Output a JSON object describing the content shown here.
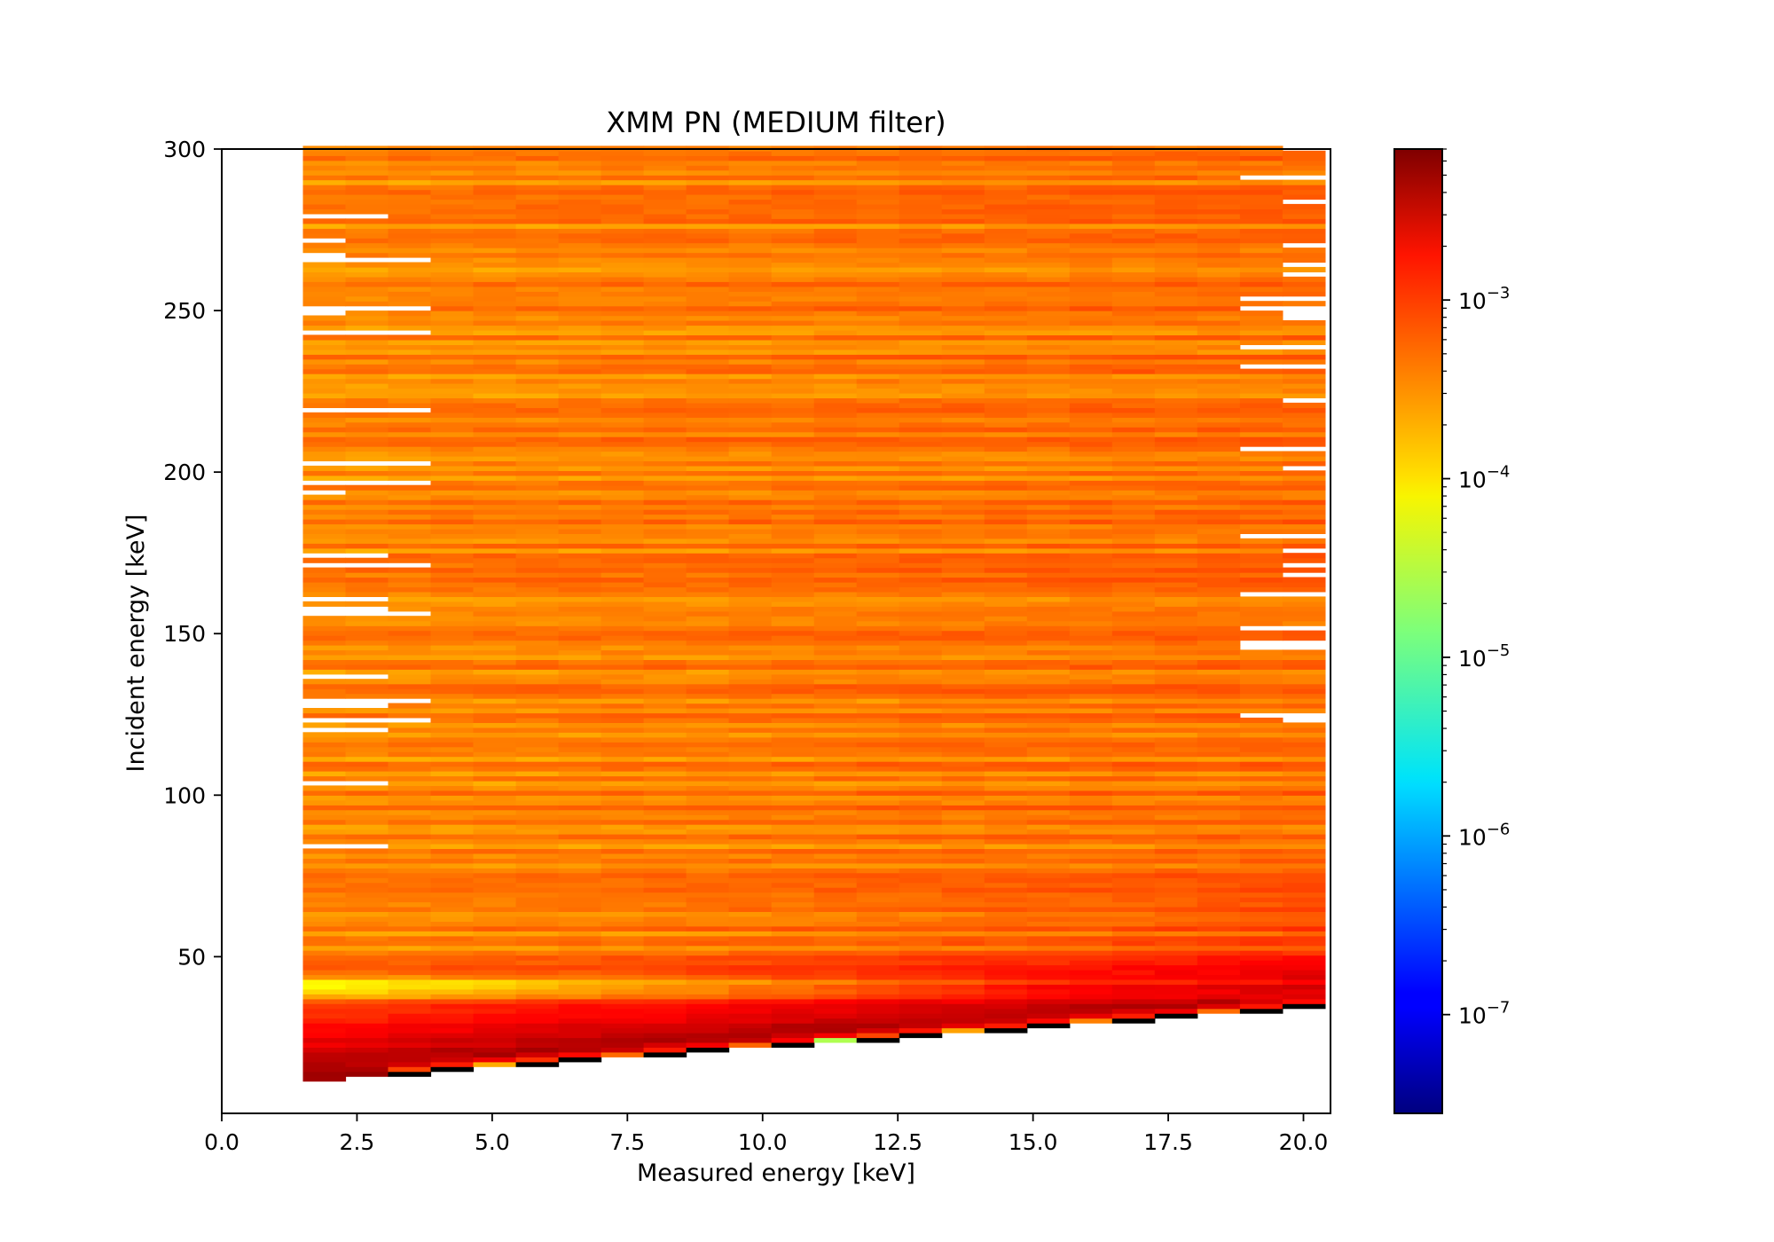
{
  "chart_data": {
    "type": "heatmap",
    "title": "XMM PN (MEDIUM filter)",
    "xlabel": "Measured energy [keV]",
    "ylabel": "Incident energy [keV]",
    "xlim": [
      0.0,
      20.5
    ],
    "ylim": [
      1.5,
      300.0
    ],
    "xticks": [
      "0.0",
      "2.5",
      "5.0",
      "7.5",
      "10.0",
      "12.5",
      "15.0",
      "17.5",
      "20.0"
    ],
    "xtick_values": [
      0,
      2.5,
      5,
      7.5,
      10,
      12.5,
      15,
      17.5,
      20
    ],
    "yticks": [
      "50",
      "100",
      "150",
      "200",
      "250",
      "300"
    ],
    "ytick_values": [
      50,
      100,
      150,
      200,
      250,
      300
    ],
    "colormap": "jet",
    "color_scale": "log",
    "colorbar": {
      "vmin": 2.8e-08,
      "vmax": 0.007,
      "ticks": [
        {
          "base": "10",
          "exp": "−3",
          "value": 0.001
        },
        {
          "base": "10",
          "exp": "−4",
          "value": 0.0001
        },
        {
          "base": "10",
          "exp": "−5",
          "value": 1e-05
        },
        {
          "base": "10",
          "exp": "−6",
          "value": 1e-06
        },
        {
          "base": "10",
          "exp": "−7",
          "value": 1e-07
        }
      ]
    },
    "data_x_range": [
      1.5,
      20.4
    ],
    "data_y_range": [
      10.0,
      300.0
    ],
    "features": {
      "peak_region": {
        "x": [
          1.5,
          3.0
        ],
        "y": [
          10,
          20
        ],
        "value": 0.005
      },
      "main_band_lower_edge": {
        "x": [
          1.5,
          20.4
        ],
        "y": [
          12,
          35
        ]
      },
      "low_response_band": {
        "y": [
          35,
          45
        ],
        "value": 3e-05
      },
      "bulk_value": 0.0003
    }
  }
}
